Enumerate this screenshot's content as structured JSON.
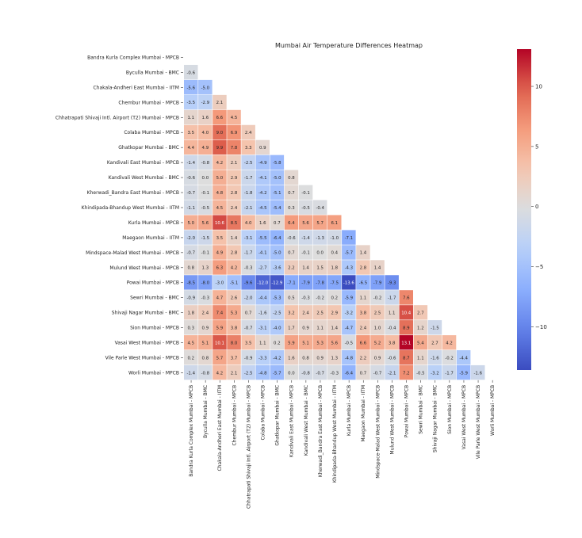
{
  "chart_data": {
    "type": "heatmap",
    "title": "Mumbai Air Temperature Differences Heatmap",
    "xlabel": "",
    "ylabel": "",
    "mask": "upper-triangle-including-diagonal",
    "colormap": "coolwarm",
    "vmin": -13.6,
    "vmax": 13.1,
    "colorbar_ticks": [
      10,
      5,
      0,
      -5,
      -10
    ],
    "colorbar_tick_labels": [
      "10",
      "5",
      "0",
      "−5",
      "−10"
    ],
    "labels": [
      "Bandra Kurla Complex  Mumbai - MPCB",
      "Byculla  Mumbai - BMC",
      "Chakala-Andheri East  Mumbai - IITM",
      "Chembur  Mumbai - MPCB",
      "Chhatrapati Shivaji Intl. Airport (T2)  Mumbai - MPCB",
      "Colaba  Mumbai - MPCB",
      "Ghatkopar  Mumbai - BMC",
      "Kandivali East  Mumbai - MPCB",
      "Kandivali West  Mumbai - BMC",
      "Kherwadi_Bandra East  Mumbai - MPCB",
      "Khindipada-Bhandup West  Mumbai - IITM",
      "Kurla  Mumbai - MPCB",
      "Maegaon  Mumbai - IITM",
      "Mindspace-Malad West  Mumbai - MPCB",
      "Mulund West  Mumbai - MPCB",
      "Powai  Mumbai - MPCB",
      "Sewri  Mumbai - BMC",
      "Shivaji Nagar  Mumbai - BMC",
      "Sion  Mumbai - MPCB",
      "Vasai West  Mumbai - MPCB",
      "Vile Parle West  Mumbai - MPCB",
      "Worli  Mumbai - MPCB"
    ],
    "values": [
      [],
      [
        -0.6
      ],
      [
        -5.6,
        -5.0
      ],
      [
        -3.5,
        -2.9,
        2.1
      ],
      [
        1.1,
        1.6,
        6.6,
        4.5
      ],
      [
        3.5,
        4.0,
        9.0,
        6.9,
        2.4
      ],
      [
        4.4,
        4.9,
        9.9,
        7.8,
        3.3,
        0.9
      ],
      [
        -1.4,
        -0.8,
        4.2,
        2.1,
        -2.5,
        -4.9,
        -5.8
      ],
      [
        -0.6,
        -0.0,
        5.0,
        2.9,
        -1.7,
        -4.1,
        -5.0,
        0.8
      ],
      [
        -0.7,
        -0.1,
        4.8,
        2.8,
        -1.8,
        -4.2,
        -5.1,
        0.7,
        -0.1
      ],
      [
        -1.1,
        -0.5,
        4.5,
        2.4,
        -2.1,
        -4.5,
        -5.4,
        0.3,
        -0.5,
        -0.4
      ],
      [
        5.0,
        5.6,
        10.6,
        8.5,
        4.0,
        1.6,
        0.7,
        6.4,
        5.6,
        5.7,
        6.1
      ],
      [
        -2.0,
        -1.5,
        3.5,
        1.4,
        -3.1,
        -5.5,
        -6.4,
        -0.6,
        -1.4,
        -1.3,
        -1.0,
        -7.1
      ],
      [
        -0.7,
        -0.1,
        4.9,
        2.8,
        -1.7,
        -4.1,
        -5.0,
        0.7,
        -0.1,
        0.0,
        0.4,
        -5.7,
        1.4
      ],
      [
        0.8,
        1.3,
        6.3,
        4.2,
        -0.3,
        -2.7,
        -3.6,
        2.2,
        1.4,
        1.5,
        1.8,
        -4.3,
        2.8,
        1.4
      ],
      [
        -8.5,
        -8.0,
        -3.0,
        -5.1,
        -9.6,
        -12.0,
        -12.9,
        -7.1,
        -7.9,
        -7.8,
        -7.5,
        -13.6,
        -6.5,
        -7.9,
        -9.3
      ],
      [
        -0.9,
        -0.3,
        4.7,
        2.6,
        -2.0,
        -4.4,
        -5.3,
        0.5,
        -0.3,
        -0.2,
        0.2,
        -5.9,
        1.1,
        -0.2,
        -1.7,
        7.6
      ],
      [
        1.8,
        2.4,
        7.4,
        5.3,
        0.7,
        -1.6,
        -2.5,
        3.2,
        2.4,
        2.5,
        2.9,
        -3.2,
        3.8,
        2.5,
        1.1,
        10.4,
        2.7
      ],
      [
        0.3,
        0.9,
        5.9,
        3.8,
        -0.7,
        -3.1,
        -4.0,
        1.7,
        0.9,
        1.1,
        1.4,
        -4.7,
        2.4,
        1.0,
        -0.4,
        8.9,
        1.2,
        -1.5
      ],
      [
        4.5,
        5.1,
        10.1,
        8.0,
        3.5,
        1.1,
        0.2,
        5.9,
        5.1,
        5.3,
        5.6,
        -0.5,
        6.6,
        5.2,
        3.8,
        13.1,
        5.4,
        2.7,
        4.2
      ],
      [
        0.2,
        0.8,
        5.7,
        3.7,
        -0.9,
        -3.3,
        -4.2,
        1.6,
        0.8,
        0.9,
        1.3,
        -4.8,
        2.2,
        0.9,
        -0.6,
        8.7,
        1.1,
        -1.6,
        -0.2,
        -4.4
      ],
      [
        -1.4,
        -0.8,
        4.2,
        2.1,
        -2.5,
        -4.8,
        -5.7,
        0.0,
        -0.8,
        -0.7,
        -0.3,
        -6.4,
        0.7,
        -0.7,
        -2.1,
        7.2,
        -0.5,
        -3.2,
        -1.7,
        -5.9,
        -1.6
      ]
    ]
  }
}
